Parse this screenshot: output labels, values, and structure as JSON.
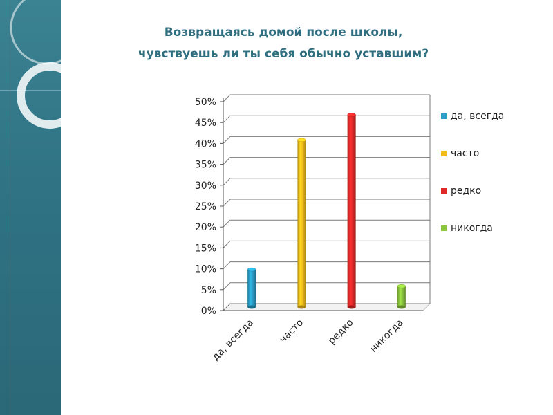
{
  "title": {
    "line1": "Возвращаясь домой после школы,",
    "line2": "чувствуешь ли ты себя  обычно уставшим?"
  },
  "colors": {
    "side_band": "#2f7384",
    "title": "#2f6f80"
  },
  "chart_data": {
    "type": "bar",
    "categories": [
      "да, всегда",
      "часто",
      "редко",
      "никогда"
    ],
    "values": [
      9,
      40,
      46,
      5
    ],
    "colors": [
      "#2aa0c8",
      "#f2be1a",
      "#e02a2a",
      "#8cc63e"
    ],
    "yticks": [
      "0%",
      "5%",
      "10%",
      "15%",
      "20%",
      "25%",
      "30%",
      "35%",
      "40%",
      "45%",
      "50%"
    ],
    "ylim": [
      0,
      50
    ],
    "ylabel": "",
    "xlabel": "",
    "grid": true,
    "legend": {
      "position": "right",
      "entries": [
        "да, всегда",
        "часто",
        "редко",
        "никогда"
      ]
    }
  }
}
